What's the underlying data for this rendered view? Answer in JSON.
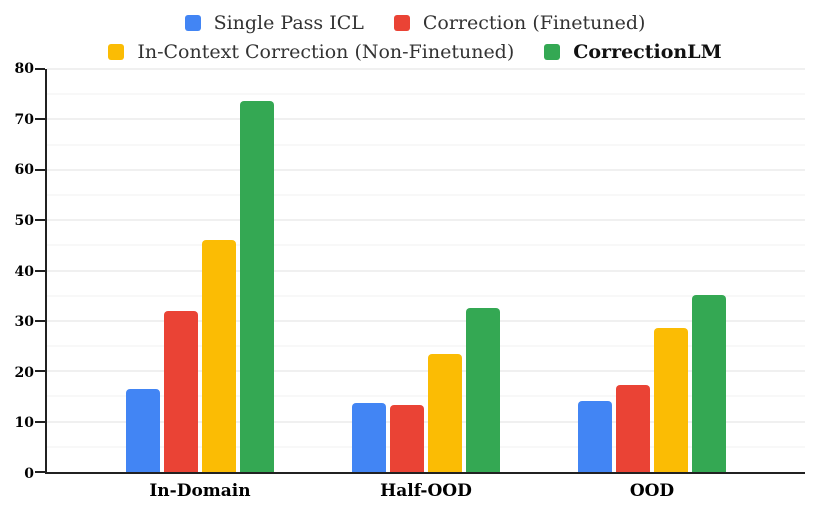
{
  "chart_data": {
    "type": "bar",
    "title": "",
    "categories": [
      "In-Domain",
      "Half-OOD",
      "OOD"
    ],
    "series": [
      {
        "name": "Single Pass ICL",
        "color": "#4285F4",
        "values": [
          16.5,
          13.7,
          14.0
        ]
      },
      {
        "name": "Correction (Finetuned)",
        "color": "#EA4335",
        "values": [
          32.0,
          13.4,
          17.3
        ]
      },
      {
        "name": "In-Context Correction (Non-Finetuned)",
        "color": "#FBBC04",
        "values": [
          46.0,
          23.5,
          28.5
        ]
      },
      {
        "name": "CorrectionLM",
        "color": "#34A853",
        "values": [
          73.6,
          32.5,
          35.2
        ],
        "emphasis": "bold"
      }
    ],
    "xlabel": "",
    "ylabel": "",
    "ylim": [
      0,
      80
    ],
    "yticks": [
      0,
      10,
      20,
      30,
      40,
      50,
      60,
      70,
      80
    ],
    "y_minor_step": 5,
    "grid": true,
    "legend_position": "top",
    "legend_rows": [
      [
        0,
        1
      ],
      [
        2,
        3
      ]
    ]
  },
  "colors": {
    "axis": "#212121",
    "grid_major": "#e2e2e2",
    "grid_minor": "#f1f1f1",
    "legend_text": "#333333",
    "tick_text": "#000000",
    "background": "#ffffff"
  }
}
